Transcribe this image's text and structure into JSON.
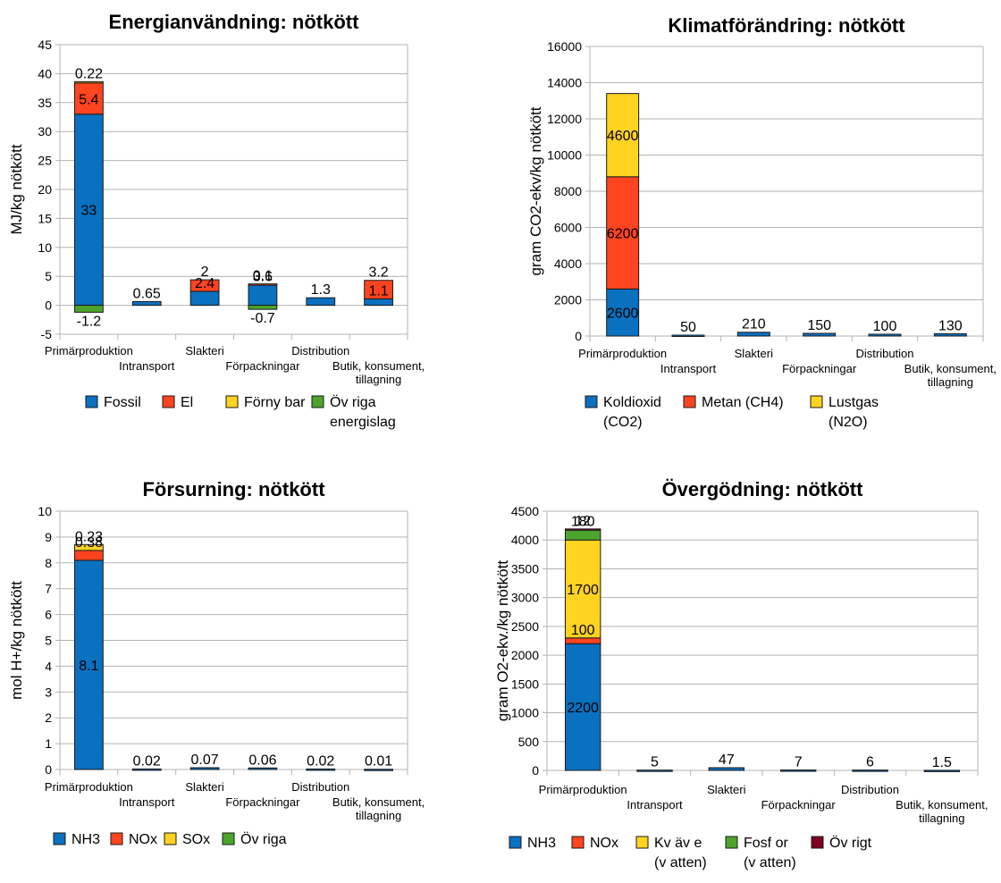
{
  "chart_data": [
    {
      "type": "bar",
      "stacked": true,
      "title": "Energianvändning: nötkött",
      "ylabel": "MJ/kg nötkött",
      "ylim": [
        -5,
        45
      ],
      "yticks": [
        -5,
        0,
        5,
        10,
        15,
        20,
        25,
        30,
        35,
        40,
        45
      ],
      "grid": true,
      "categories": [
        [
          "Primärproduktion"
        ],
        [
          "Intransport"
        ],
        [
          "Slakteri"
        ],
        [
          "Förpackningar"
        ],
        [
          "Distribution"
        ],
        [
          "Butik, konsument,",
          "tillagning"
        ]
      ],
      "series": [
        {
          "name": [
            "Fossil"
          ],
          "color": "#0a70c0",
          "values": [
            33,
            0.65,
            2.4,
            3.6,
            1.3,
            1.1
          ],
          "labels": [
            "33",
            "0.65",
            "2.4",
            "3.6",
            "1.3",
            "1.1"
          ]
        },
        {
          "name": [
            "El"
          ],
          "color": "#ff4420",
          "values": [
            5.4,
            0,
            2,
            0.1,
            0,
            3.2
          ],
          "labels": [
            "5.4",
            "",
            "2",
            "0.1",
            "",
            "3.2"
          ]
        },
        {
          "name": [
            "Förny bar"
          ],
          "color": "#ffd320",
          "values": [
            0.22,
            0,
            0,
            0,
            0,
            0
          ],
          "labels": [
            "0.22",
            "",
            "",
            "",
            "",
            ""
          ]
        },
        {
          "name": [
            "Öv riga",
            "energislag"
          ],
          "color": "#4ca42c",
          "values": [
            -1.2,
            0,
            0,
            -0.7,
            0,
            0
          ],
          "labels": [
            "-1.2",
            "",
            "",
            "-0.7",
            "",
            ""
          ]
        }
      ],
      "legend": "bottom"
    },
    {
      "type": "bar",
      "stacked": true,
      "title": "Klimatförändring: nötkött",
      "ylabel": "gram CO2-ekv/kg nötkött",
      "ylim": [
        0,
        16000
      ],
      "yticks": [
        0,
        2000,
        4000,
        6000,
        8000,
        10000,
        12000,
        14000,
        16000
      ],
      "grid": true,
      "categories": [
        [
          "Primärproduktion"
        ],
        [
          "Intransport"
        ],
        [
          "Slakteri"
        ],
        [
          "Förpackningar"
        ],
        [
          "Distribution"
        ],
        [
          "Butik, konsument,",
          "tillagning"
        ]
      ],
      "series": [
        {
          "name": [
            "Koldioxid",
            "(CO2)"
          ],
          "color": "#0a70c0",
          "values": [
            2600,
            50,
            210,
            150,
            100,
            130
          ],
          "labels": [
            "2600",
            "50",
            "210",
            "150",
            "100",
            "130"
          ]
        },
        {
          "name": [
            "Metan (CH4)"
          ],
          "color": "#ff4420",
          "values": [
            6200,
            0,
            0,
            0,
            0,
            0
          ],
          "labels": [
            "6200",
            "",
            "",
            "",
            "",
            ""
          ]
        },
        {
          "name": [
            "Lustgas",
            "(N2O)"
          ],
          "color": "#ffd320",
          "values": [
            4600,
            0,
            0,
            0,
            0,
            0
          ],
          "labels": [
            "4600",
            "",
            "",
            "",
            "",
            ""
          ]
        }
      ],
      "legend": "bottom"
    },
    {
      "type": "bar",
      "stacked": true,
      "title": "Försurning: nötkött",
      "ylabel": "mol H+/kg nötkött",
      "ylim": [
        0,
        10
      ],
      "yticks": [
        0,
        1,
        2,
        3,
        4,
        5,
        6,
        7,
        8,
        9,
        10
      ],
      "grid": true,
      "categories": [
        [
          "Primärproduktion"
        ],
        [
          "Intransport"
        ],
        [
          "Slakteri"
        ],
        [
          "Förpackningar"
        ],
        [
          "Distribution"
        ],
        [
          "Butik, konsument,",
          "tillagning"
        ]
      ],
      "series": [
        {
          "name": [
            "NH3"
          ],
          "color": "#0a70c0",
          "values": [
            8.1,
            0.02,
            0.07,
            0.06,
            0.02,
            0.01
          ],
          "labels": [
            "8.1",
            "0.02",
            "0.07",
            "0.06",
            "0.02",
            "0.01"
          ]
        },
        {
          "name": [
            "NOx"
          ],
          "color": "#ff4420",
          "values": [
            0.38,
            0,
            0,
            0,
            0,
            0
          ],
          "labels": [
            "0.38",
            "",
            "",
            "",
            "",
            ""
          ]
        },
        {
          "name": [
            "SOx"
          ],
          "color": "#ffd320",
          "values": [
            0.23,
            0,
            0,
            0,
            0,
            0
          ],
          "labels": [
            "0.23",
            "",
            "",
            "",
            "",
            ""
          ]
        },
        {
          "name": [
            "Öv riga"
          ],
          "color": "#4ca42c",
          "values": [
            0,
            0,
            0,
            0,
            0,
            0
          ],
          "labels": [
            "",
            "",
            "",
            "",
            "",
            ""
          ]
        }
      ],
      "legend": "bottom"
    },
    {
      "type": "bar",
      "stacked": true,
      "title": "Övergödning: nötkött",
      "ylabel": "gram O2-ekv./kg nötkött",
      "ylim": [
        0,
        4500
      ],
      "yticks": [
        0,
        500,
        1000,
        1500,
        2000,
        2500,
        3000,
        3500,
        4000,
        4500
      ],
      "grid": true,
      "categories": [
        [
          "Primärproduktion"
        ],
        [
          "Intransport"
        ],
        [
          "Slakteri"
        ],
        [
          "Förpackningar"
        ],
        [
          "Distribution"
        ],
        [
          "Butik, konsument,",
          "tillagning"
        ]
      ],
      "series": [
        {
          "name": [
            "NH3"
          ],
          "color": "#0a70c0",
          "values": [
            2200,
            5,
            47,
            7,
            6,
            1.5
          ],
          "labels": [
            "2200",
            "5",
            "47",
            "7",
            "6",
            "1.5"
          ]
        },
        {
          "name": [
            "NOx"
          ],
          "color": "#ff4420",
          "values": [
            100,
            0,
            0,
            0,
            0,
            0
          ],
          "labels": [
            "100",
            "",
            "",
            "",
            "",
            ""
          ]
        },
        {
          "name": [
            "Kv äv e",
            "(v atten)"
          ],
          "color": "#ffd320",
          "values": [
            1700,
            0,
            0,
            0,
            0,
            0
          ],
          "labels": [
            "1700",
            "",
            "",
            "",
            "",
            ""
          ]
        },
        {
          "name": [
            "Fosf or",
            "(v atten)"
          ],
          "color": "#4ca42c",
          "values": [
            180,
            0,
            0,
            0,
            0,
            0
          ],
          "labels": [
            "180",
            "",
            "",
            "",
            "",
            ""
          ]
        },
        {
          "name": [
            "Öv rigt"
          ],
          "color": "#7e0021",
          "values": [
            12,
            0,
            0,
            0,
            0,
            0
          ],
          "labels": [
            "12",
            "",
            "",
            "",
            "",
            ""
          ]
        }
      ],
      "legend": "bottom"
    }
  ]
}
